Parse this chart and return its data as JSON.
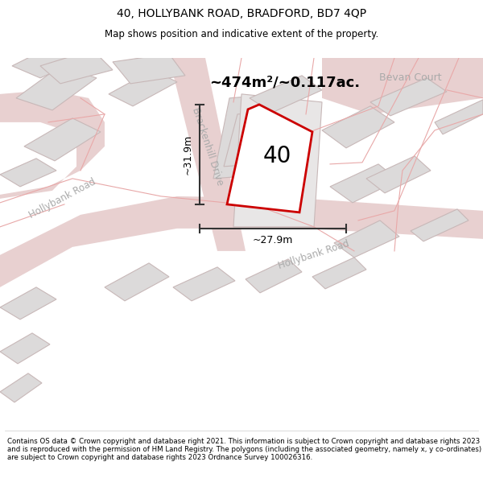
{
  "title_line1": "40, HOLLYBANK ROAD, BRADFORD, BD7 4QP",
  "title_line2": "Map shows position and indicative extent of the property.",
  "footer_text": "Contains OS data © Crown copyright and database right 2021. This information is subject to Crown copyright and database rights 2023 and is reproduced with the permission of HM Land Registry. The polygons (including the associated geometry, namely x, y co-ordinates) are subject to Crown copyright and database rights 2023 Ordnance Survey 100026316.",
  "area_label": "~474m²/~0.117ac.",
  "property_number": "40",
  "dim_horizontal": "~27.9m",
  "dim_vertical": "~31.9m",
  "label_brackenhill": "Brackenhill Drive",
  "label_hollybank_left": "Hollybank Road",
  "label_hollybank_bottom": "Hollybank Road",
  "label_bevan": "Bevan Court",
  "map_bg": "#f2f0f0",
  "road_color": "#e8d0d0",
  "block_face": "#dcdada",
  "block_edge": "#c8b8b8",
  "property_fill": "#ffffff",
  "property_edge": "#cc0000",
  "dim_color": "#333333",
  "text_road_color": "#aaaaaa",
  "title_fontsize": 10,
  "subtitle_fontsize": 8.5,
  "footer_fontsize": 6.2
}
